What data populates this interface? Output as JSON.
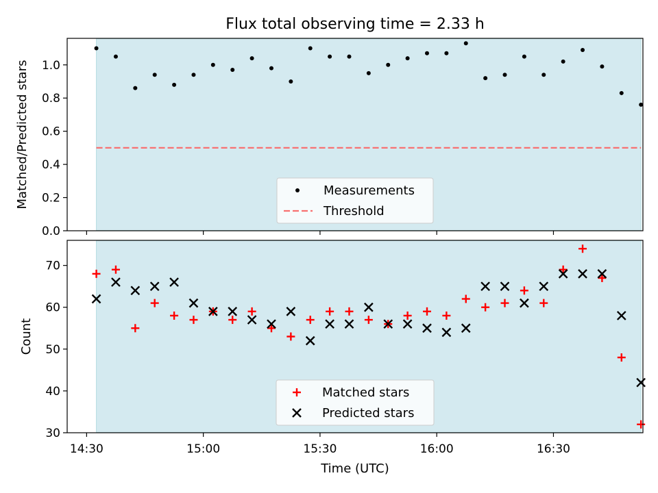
{
  "chart_data": [
    {
      "type": "scatter",
      "title": "Flux total observing time = 2.33 h",
      "xlabel": "",
      "ylabel": "Matched/Predicted stars",
      "xlim": [
        "14:25",
        "16:53"
      ],
      "ylim": [
        0,
        1.16
      ],
      "yticks": [
        0.0,
        0.2,
        0.4,
        0.6,
        0.8,
        1.0
      ],
      "ytick_labels": [
        "0.0",
        "0.2",
        "0.4",
        "0.6",
        "0.8",
        "1.0"
      ],
      "shaded_interval": [
        "14:32.5",
        "16:52.5"
      ],
      "grid": false,
      "legend_position": "lower center",
      "series": [
        {
          "name": "Measurements",
          "marker": "dot",
          "color": "#000000",
          "x": [
            "14:32.5",
            "14:37.5",
            "14:42.5",
            "14:47.5",
            "14:52.5",
            "14:57.5",
            "15:02.5",
            "15:07.5",
            "15:12.5",
            "15:17.5",
            "15:22.5",
            "15:27.5",
            "15:32.5",
            "15:37.5",
            "15:42.5",
            "15:47.5",
            "15:52.5",
            "15:57.5",
            "16:02.5",
            "16:07.5",
            "16:12.5",
            "16:17.5",
            "16:22.5",
            "16:27.5",
            "16:32.5",
            "16:37.5",
            "16:42.5",
            "16:47.5",
            "16:52.5"
          ],
          "y": [
            1.1,
            1.05,
            0.86,
            0.94,
            0.88,
            0.94,
            1.0,
            0.97,
            1.04,
            0.98,
            0.9,
            1.1,
            1.05,
            1.05,
            0.95,
            1.0,
            1.04,
            1.07,
            1.07,
            1.13,
            0.92,
            0.94,
            1.05,
            0.94,
            1.02,
            1.09,
            0.99,
            0.83,
            0.76
          ]
        },
        {
          "name": "Threshold",
          "style": "dashed",
          "color": "#f87171",
          "x": [
            "14:32.5",
            "16:52.5"
          ],
          "y": [
            0.5,
            0.5
          ]
        }
      ]
    },
    {
      "type": "scatter",
      "title": "",
      "xlabel": "Time (UTC)",
      "ylabel": "Count",
      "xlim": [
        "14:25",
        "16:53"
      ],
      "ylim": [
        30,
        76
      ],
      "yticks": [
        30,
        40,
        50,
        60,
        70
      ],
      "ytick_labels": [
        "30",
        "40",
        "50",
        "60",
        "70"
      ],
      "xticks": [
        "14:30",
        "15:00",
        "15:30",
        "16:00",
        "16:30"
      ],
      "xtick_labels": [
        "14:30",
        "15:00",
        "15:30",
        "16:00",
        "16:30"
      ],
      "shaded_interval": [
        "14:32.5",
        "16:52.5"
      ],
      "grid": false,
      "legend_position": "lower center",
      "series": [
        {
          "name": "Matched stars",
          "marker": "plus",
          "color": "#ff0000",
          "x": [
            "14:32.5",
            "14:37.5",
            "14:42.5",
            "14:47.5",
            "14:52.5",
            "14:57.5",
            "15:02.5",
            "15:07.5",
            "15:12.5",
            "15:17.5",
            "15:22.5",
            "15:27.5",
            "15:32.5",
            "15:37.5",
            "15:42.5",
            "15:47.5",
            "15:52.5",
            "15:57.5",
            "16:02.5",
            "16:07.5",
            "16:12.5",
            "16:17.5",
            "16:22.5",
            "16:27.5",
            "16:32.5",
            "16:37.5",
            "16:42.5",
            "16:47.5",
            "16:52.5"
          ],
          "y": [
            68,
            69,
            55,
            61,
            58,
            57,
            59,
            57,
            59,
            55,
            53,
            57,
            59,
            59,
            57,
            56,
            58,
            59,
            58,
            62,
            60,
            61,
            64,
            61,
            69,
            74,
            67,
            48,
            32
          ]
        },
        {
          "name": "Predicted stars",
          "marker": "x",
          "color": "#000000",
          "x": [
            "14:32.5",
            "14:37.5",
            "14:42.5",
            "14:47.5",
            "14:52.5",
            "14:57.5",
            "15:02.5",
            "15:07.5",
            "15:12.5",
            "15:17.5",
            "15:22.5",
            "15:27.5",
            "15:32.5",
            "15:37.5",
            "15:42.5",
            "15:47.5",
            "15:52.5",
            "15:57.5",
            "16:02.5",
            "16:07.5",
            "16:12.5",
            "16:17.5",
            "16:22.5",
            "16:27.5",
            "16:32.5",
            "16:37.5",
            "16:42.5",
            "16:47.5",
            "16:52.5"
          ],
          "y": [
            62,
            66,
            64,
            65,
            66,
            61,
            59,
            59,
            57,
            56,
            59,
            52,
            56,
            56,
            60,
            56,
            56,
            55,
            54,
            55,
            65,
            65,
            61,
            65,
            68,
            68,
            68,
            58,
            42
          ]
        }
      ]
    }
  ],
  "colors": {
    "shade": "#d4eaf0",
    "shade_edge": "#b5dde2",
    "threshold": "#f87171",
    "matched": "#ff0000",
    "predicted": "#000000"
  }
}
